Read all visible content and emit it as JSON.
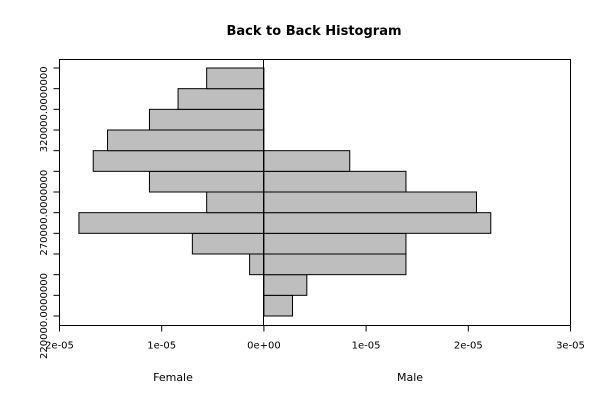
{
  "chart_data": {
    "type": "bar",
    "title": "Back to Back Histogram",
    "orientation": "horizontal-back-to-back",
    "bin_edges": [
      220000,
      230000,
      240000,
      250000,
      260000,
      270000,
      280000,
      290000,
      300000,
      310000,
      320000,
      330000,
      340000
    ],
    "y_tick_labels": [
      "220000.0000000",
      "270000.0000000",
      "320000.0000000"
    ],
    "y_tick_values": [
      220000,
      270000,
      320000
    ],
    "x_tick_labels": [
      "2e-05",
      "1e-05",
      "0e+00",
      "1e-05",
      "2e-05",
      "3e-05"
    ],
    "x_tick_values": [
      -2e-05,
      -1e-05,
      0,
      1e-05,
      2e-05,
      3e-05
    ],
    "xlim": [
      -2e-05,
      3e-05
    ],
    "left_series": {
      "name": "Female",
      "values": [
        0,
        0,
        1.4e-06,
        7e-06,
        1.81e-05,
        5.6e-06,
        1.12e-05,
        1.67e-05,
        1.53e-05,
        1.12e-05,
        8.4e-06,
        5.6e-06
      ]
    },
    "right_series": {
      "name": "Male",
      "values": [
        2.8e-06,
        4.2e-06,
        1.39e-05,
        1.39e-05,
        2.22e-05,
        2.08e-05,
        1.39e-05,
        8.4e-06,
        0,
        0,
        0,
        0
      ]
    },
    "xlabel_left": "Female",
    "xlabel_right": "Male",
    "grid": false,
    "legend": false,
    "colors": {
      "bar_fill": "#bebebe",
      "bar_stroke": "#000000"
    }
  }
}
